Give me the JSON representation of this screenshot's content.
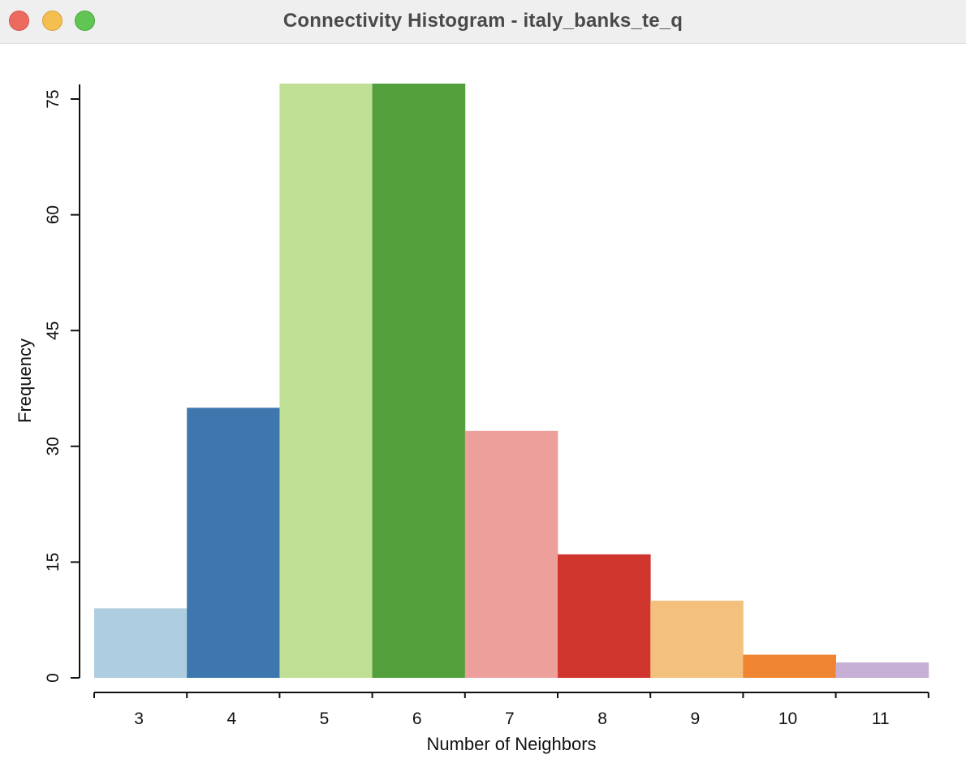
{
  "window": {
    "title": "Connectivity Histogram - italy_banks_te_q"
  },
  "chart_data": {
    "type": "bar",
    "title": "",
    "xlabel": "Number of Neighbors",
    "ylabel": "Frequency",
    "categories": [
      "3",
      "4",
      "5",
      "6",
      "7",
      "8",
      "9",
      "10",
      "11"
    ],
    "values": [
      9,
      35,
      77,
      77,
      32,
      16,
      10,
      3,
      2
    ],
    "colors": [
      "#afcde0",
      "#3d77ae",
      "#bedf94",
      "#539f3c",
      "#eda09b",
      "#d0352e",
      "#f3c17d",
      "#ef8533",
      "#c7b0d6"
    ],
    "yticks": [
      0,
      15,
      30,
      45,
      60,
      75
    ],
    "ylim": [
      0,
      77
    ],
    "grid": false,
    "legend": "none"
  }
}
